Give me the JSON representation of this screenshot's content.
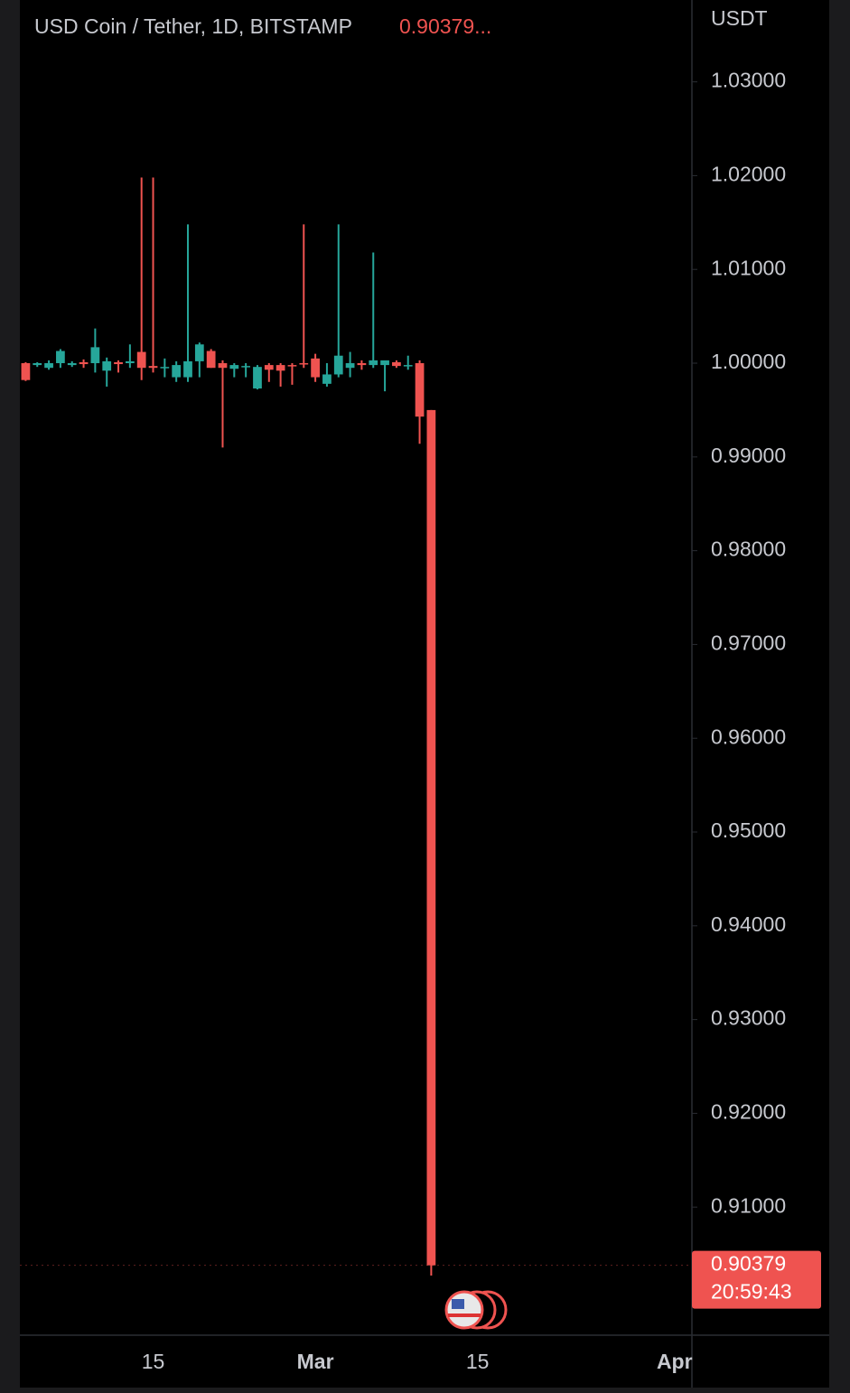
{
  "chart_data": {
    "type": "candlestick",
    "title": "USD Coin / Tether, 1D, BITSTAMP",
    "header_price": "0.90379...",
    "y_label": "USDT",
    "countdown": "20:59:43",
    "up_color": "#26a69a",
    "down_color": "#ef5350",
    "categories": [
      null,
      null,
      null,
      null,
      null,
      null,
      null,
      null,
      null,
      null,
      null,
      "15",
      null,
      null,
      null,
      null,
      null,
      null,
      null,
      null,
      null,
      null,
      null,
      null,
      null,
      "Mar",
      null,
      null,
      null,
      null,
      null,
      null,
      null,
      null,
      null,
      null,
      null,
      null,
      null,
      "15",
      null,
      null,
      null,
      null,
      null,
      null,
      null,
      null,
      null,
      null,
      null,
      null,
      null,
      null,
      null,
      null,
      "Apr",
      null
    ],
    "open": [
      1.0,
      0.9998,
      0.9995,
      1.0,
      0.9998,
      1.0001,
      1.0,
      0.9992,
      1.0001,
      1.0,
      1.0012,
      0.9997,
      0.9995,
      0.9985,
      0.9985,
      1.0002,
      1.0013,
      1.0,
      0.9994,
      0.9997,
      0.9973,
      0.9998,
      0.9998,
      0.9998,
      1.0,
      1.0005,
      0.9978,
      0.9988,
      0.9995,
      1.0,
      0.9998,
      0.9998,
      1.0001,
      0.9997,
      1.0,
      0.995,
      null,
      null,
      null,
      null,
      null,
      null,
      null,
      null,
      null,
      null,
      null,
      null,
      null,
      null,
      null,
      null,
      null,
      null,
      null,
      null,
      null,
      null
    ],
    "high": [
      1.0001,
      1.0001,
      1.0003,
      1.0015,
      1.0002,
      1.0004,
      1.0037,
      1.0006,
      1.0003,
      1.002,
      1.0198,
      1.0198,
      1.0005,
      1.0002,
      1.0148,
      1.0022,
      1.0015,
      1.0003,
      1.0,
      1.0,
      0.9998,
      1.0,
      1.0,
      1.0,
      1.0148,
      1.001,
      1.0,
      1.0148,
      1.0012,
      1.0003,
      1.0118,
      1.0002,
      1.0003,
      1.0008,
      1.0003,
      0.995,
      null,
      null,
      null,
      null,
      null,
      null,
      null,
      null,
      null,
      null,
      null,
      null,
      null,
      null,
      null,
      null,
      null,
      null,
      null,
      null,
      null,
      null
    ],
    "low": [
      0.9981,
      0.9996,
      0.9993,
      0.9995,
      0.9996,
      0.9995,
      0.999,
      0.9975,
      0.999,
      0.9995,
      0.9982,
      0.999,
      0.9985,
      0.998,
      0.998,
      0.9985,
      0.9995,
      0.991,
      0.9985,
      0.9985,
      0.9972,
      0.998,
      0.9975,
      0.9977,
      0.9995,
      0.998,
      0.9975,
      0.9985,
      0.9985,
      0.9993,
      0.9995,
      0.997,
      0.9995,
      0.9993,
      0.9914,
      0.9027,
      null,
      null,
      null,
      null,
      null,
      null,
      null,
      null,
      null,
      null,
      null,
      null,
      null,
      null,
      null,
      null,
      null,
      null,
      null,
      null,
      null,
      null
    ],
    "close": [
      0.9982,
      1.0,
      1.0,
      1.0013,
      1.0,
      0.9999,
      1.0017,
      1.0002,
      0.9999,
      1.0002,
      0.9995,
      0.9995,
      0.9996,
      0.9998,
      1.0002,
      1.002,
      0.9995,
      0.9995,
      0.9998,
      0.9997,
      0.9996,
      0.9993,
      0.9992,
      0.9997,
      0.9999,
      0.9985,
      0.9988,
      1.0008,
      1.0,
      0.9998,
      1.0003,
      1.0003,
      0.9997,
      0.9998,
      0.9943,
      0.90379,
      null,
      null,
      null,
      null,
      null,
      null,
      null,
      null,
      null,
      null,
      null,
      null,
      null,
      null,
      null,
      null,
      null,
      null,
      null,
      null,
      null,
      null
    ],
    "ylim": [
      0.89634,
      1.03873
    ],
    "yticks": [
      {
        "value": 0.91,
        "label": "0.91000"
      },
      {
        "value": 0.92,
        "label": "0.92000"
      },
      {
        "value": 0.93,
        "label": "0.93000"
      },
      {
        "value": 0.94,
        "label": "0.94000"
      },
      {
        "value": 0.95,
        "label": "0.95000"
      },
      {
        "value": 0.96,
        "label": "0.96000"
      },
      {
        "value": 0.97,
        "label": "0.97000"
      },
      {
        "value": 0.98,
        "label": "0.98000"
      },
      {
        "value": 0.99,
        "label": "0.99000"
      },
      {
        "value": 1.0,
        "label": "1.00000"
      },
      {
        "value": 1.01,
        "label": "1.01000"
      },
      {
        "value": 1.02,
        "label": "1.02000"
      },
      {
        "value": 1.03,
        "label": "1.03000"
      }
    ]
  }
}
